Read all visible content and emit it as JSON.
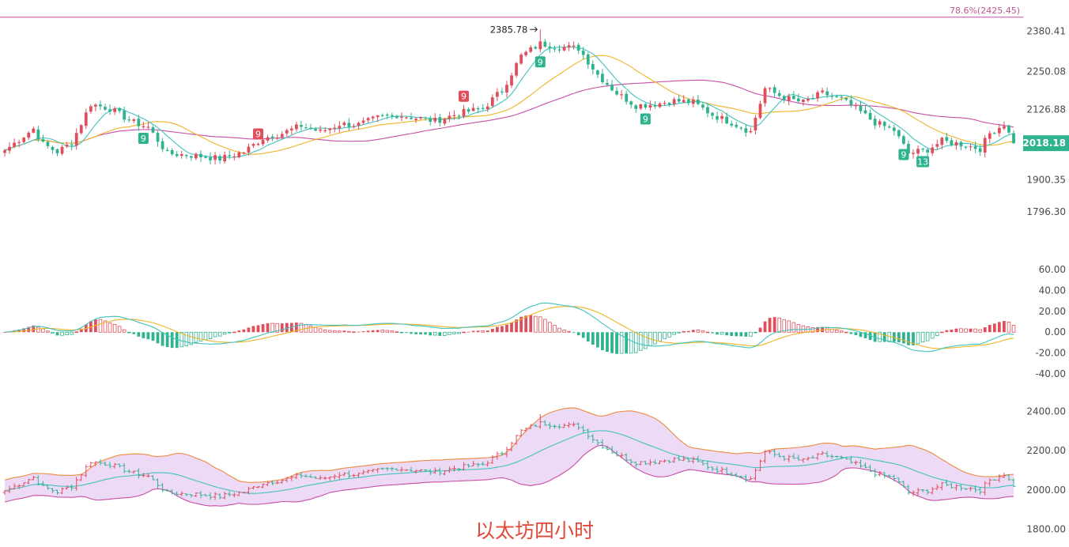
{
  "colors": {
    "up": "#e04e5c",
    "down": "#2fb38f",
    "ma_short": "#41c3bd",
    "ma_mid": "#f0b429",
    "ma_long": "#c94fa6",
    "boll_fill": "#ecdaf6",
    "boll_mid": "#41c3bd",
    "boll_upper": "#f08a3e",
    "boll_lower": "#c94fa6",
    "fib_line": "#c94fa6",
    "current_price_bg": "#2fb38f",
    "watermark": "#e04a3a"
  },
  "title_text": "以太坊四小时",
  "fib_label": "78.6%(2425.45)",
  "peak_label": "2385.78",
  "current_price_label": "2018.18",
  "chart_data": [
    {
      "type": "candlestick",
      "panel": "price",
      "ylim": [
        1740,
        2430
      ],
      "tick_labels": [
        "2380.41",
        "2250.08",
        "2126.88",
        "1900.35",
        "1796.30"
      ],
      "tick_values": [
        2380.41,
        2250.08,
        2126.88,
        1900.35,
        1796.3
      ],
      "horizontal_line": {
        "value": 2425.45,
        "label": "78.6%(2425.45)"
      },
      "current_price": 2018.18,
      "peak": {
        "value": 2385.78,
        "label": "2385.78"
      },
      "anchors": [
        {
          "i": 0,
          "c": 1995
        },
        {
          "i": 6,
          "c": 2065
        },
        {
          "i": 8,
          "c": 2015
        },
        {
          "i": 11,
          "c": 1990
        },
        {
          "i": 14,
          "c": 2020
        },
        {
          "i": 18,
          "c": 2145
        },
        {
          "i": 22,
          "c": 2130
        },
        {
          "i": 27,
          "c": 2085
        },
        {
          "i": 30,
          "c": 2070
        },
        {
          "i": 34,
          "c": 1985
        },
        {
          "i": 40,
          "c": 1978
        },
        {
          "i": 45,
          "c": 1968
        },
        {
          "i": 50,
          "c": 1990
        },
        {
          "i": 54,
          "c": 2035
        },
        {
          "i": 58,
          "c": 2050
        },
        {
          "i": 62,
          "c": 2075
        },
        {
          "i": 66,
          "c": 2055
        },
        {
          "i": 70,
          "c": 2080
        },
        {
          "i": 74,
          "c": 2078
        },
        {
          "i": 78,
          "c": 2100
        },
        {
          "i": 82,
          "c": 2110
        },
        {
          "i": 86,
          "c": 2100
        },
        {
          "i": 90,
          "c": 2090
        },
        {
          "i": 95,
          "c": 2115
        },
        {
          "i": 100,
          "c": 2130
        },
        {
          "i": 104,
          "c": 2190
        },
        {
          "i": 108,
          "c": 2300
        },
        {
          "i": 112,
          "c": 2340
        },
        {
          "i": 116,
          "c": 2330
        },
        {
          "i": 120,
          "c": 2325
        },
        {
          "i": 124,
          "c": 2240
        },
        {
          "i": 128,
          "c": 2180
        },
        {
          "i": 132,
          "c": 2140
        },
        {
          "i": 136,
          "c": 2145
        },
        {
          "i": 140,
          "c": 2155
        },
        {
          "i": 144,
          "c": 2150
        },
        {
          "i": 148,
          "c": 2110
        },
        {
          "i": 152,
          "c": 2085
        },
        {
          "i": 156,
          "c": 2055
        },
        {
          "i": 159,
          "c": 2195
        },
        {
          "i": 163,
          "c": 2165
        },
        {
          "i": 167,
          "c": 2150
        },
        {
          "i": 171,
          "c": 2180
        },
        {
          "i": 175,
          "c": 2160
        },
        {
          "i": 178,
          "c": 2130
        },
        {
          "i": 182,
          "c": 2085
        },
        {
          "i": 186,
          "c": 2060
        },
        {
          "i": 189,
          "c": 1985
        },
        {
          "i": 193,
          "c": 1998
        },
        {
          "i": 196,
          "c": 2025
        },
        {
          "i": 200,
          "c": 2015
        },
        {
          "i": 204,
          "c": 2000
        },
        {
          "i": 206,
          "c": 2050
        },
        {
          "i": 209,
          "c": 2080
        },
        {
          "i": 211,
          "c": 2018
        }
      ],
      "series": [
        {
          "name": "MA short",
          "color": "ma_short"
        },
        {
          "name": "MA mid",
          "color": "ma_mid"
        },
        {
          "name": "MA long",
          "color": "ma_long"
        }
      ],
      "td_markers": [
        {
          "i": 29,
          "label": "9",
          "pos": "below",
          "kind": "down"
        },
        {
          "i": 53,
          "label": "9",
          "pos": "above",
          "kind": "up"
        },
        {
          "i": 96,
          "label": "9",
          "pos": "above",
          "kind": "up"
        },
        {
          "i": 112,
          "label": "9",
          "pos": "below",
          "kind": "down"
        },
        {
          "i": 134,
          "label": "9",
          "pos": "below",
          "kind": "down"
        },
        {
          "i": 188,
          "label": "9",
          "pos": "below",
          "kind": "down"
        },
        {
          "i": 192,
          "label": "13",
          "pos": "below",
          "kind": "down"
        }
      ]
    },
    {
      "type": "macd",
      "panel": "macd",
      "ylim": [
        -55,
        72
      ],
      "tick_labels": [
        "60.00",
        "40.00",
        "20.00",
        "0.00",
        "-20.00",
        "-40.00"
      ],
      "tick_values": [
        60,
        40,
        20,
        0,
        -20,
        -40
      ],
      "series": [
        {
          "name": "DIF",
          "color": "ma_short"
        },
        {
          "name": "DEA",
          "color": "ma_mid"
        },
        {
          "name": "MACD",
          "color": "up"
        }
      ]
    },
    {
      "type": "bollinger",
      "panel": "boll",
      "ylim": [
        1790,
        2450
      ],
      "tick_labels": [
        "2400.00",
        "2200.00",
        "2000.00",
        "1800.00"
      ],
      "tick_values": [
        2400,
        2200,
        2000,
        1800
      ],
      "series": [
        {
          "name": "upper",
          "color": "boll_upper"
        },
        {
          "name": "mid",
          "color": "boll_mid"
        },
        {
          "name": "lower",
          "color": "boll_lower"
        }
      ]
    }
  ]
}
